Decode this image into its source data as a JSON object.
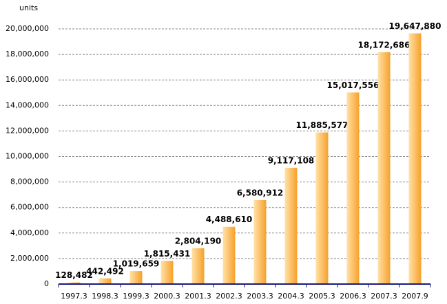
{
  "chart_data": {
    "type": "bar",
    "y_label": "units",
    "categories": [
      "1997.3",
      "1998.3",
      "1999.3",
      "2000.3",
      "2001.3",
      "2002.3",
      "2003.3",
      "2004.3",
      "2005.3",
      "2006.3",
      "2007.3",
      "2007.9"
    ],
    "values": [
      128482,
      442492,
      1019659,
      1815431,
      2804190,
      4488610,
      6580912,
      9117108,
      11885577,
      15017556,
      18172686,
      19647880
    ],
    "value_labels": [
      "128,482",
      "442,492",
      "1,019,659",
      "1,815,431",
      "2,804,190",
      "4,488,610",
      "6,580,912",
      "9,117,108",
      "11,885,577",
      "15,017,556",
      "18,172,686",
      "19,647,880"
    ],
    "color": "#f7a02a",
    "ylim": [
      0,
      20000000
    ],
    "yticks": [
      0,
      {
        "value": 2000000,
        "label": "2,000,000"
      },
      {
        "value": 4000000,
        "label": "4,000,000"
      },
      {
        "value": 6000000,
        "label": "6,000,000"
      },
      {
        "value": 8000000,
        "label": "8,000,000"
      },
      {
        "value": 10000000,
        "label": "10,000,000"
      },
      {
        "value": 12000000,
        "label": "12,000,000"
      },
      {
        "value": 14000000,
        "label": "14,000,000"
      },
      {
        "value": 16000000,
        "label": "16,000,000"
      },
      {
        "value": 18000000,
        "label": "18,000,000"
      },
      {
        "value": 20000000,
        "label": "20,000,000"
      }
    ],
    "grid": true
  }
}
